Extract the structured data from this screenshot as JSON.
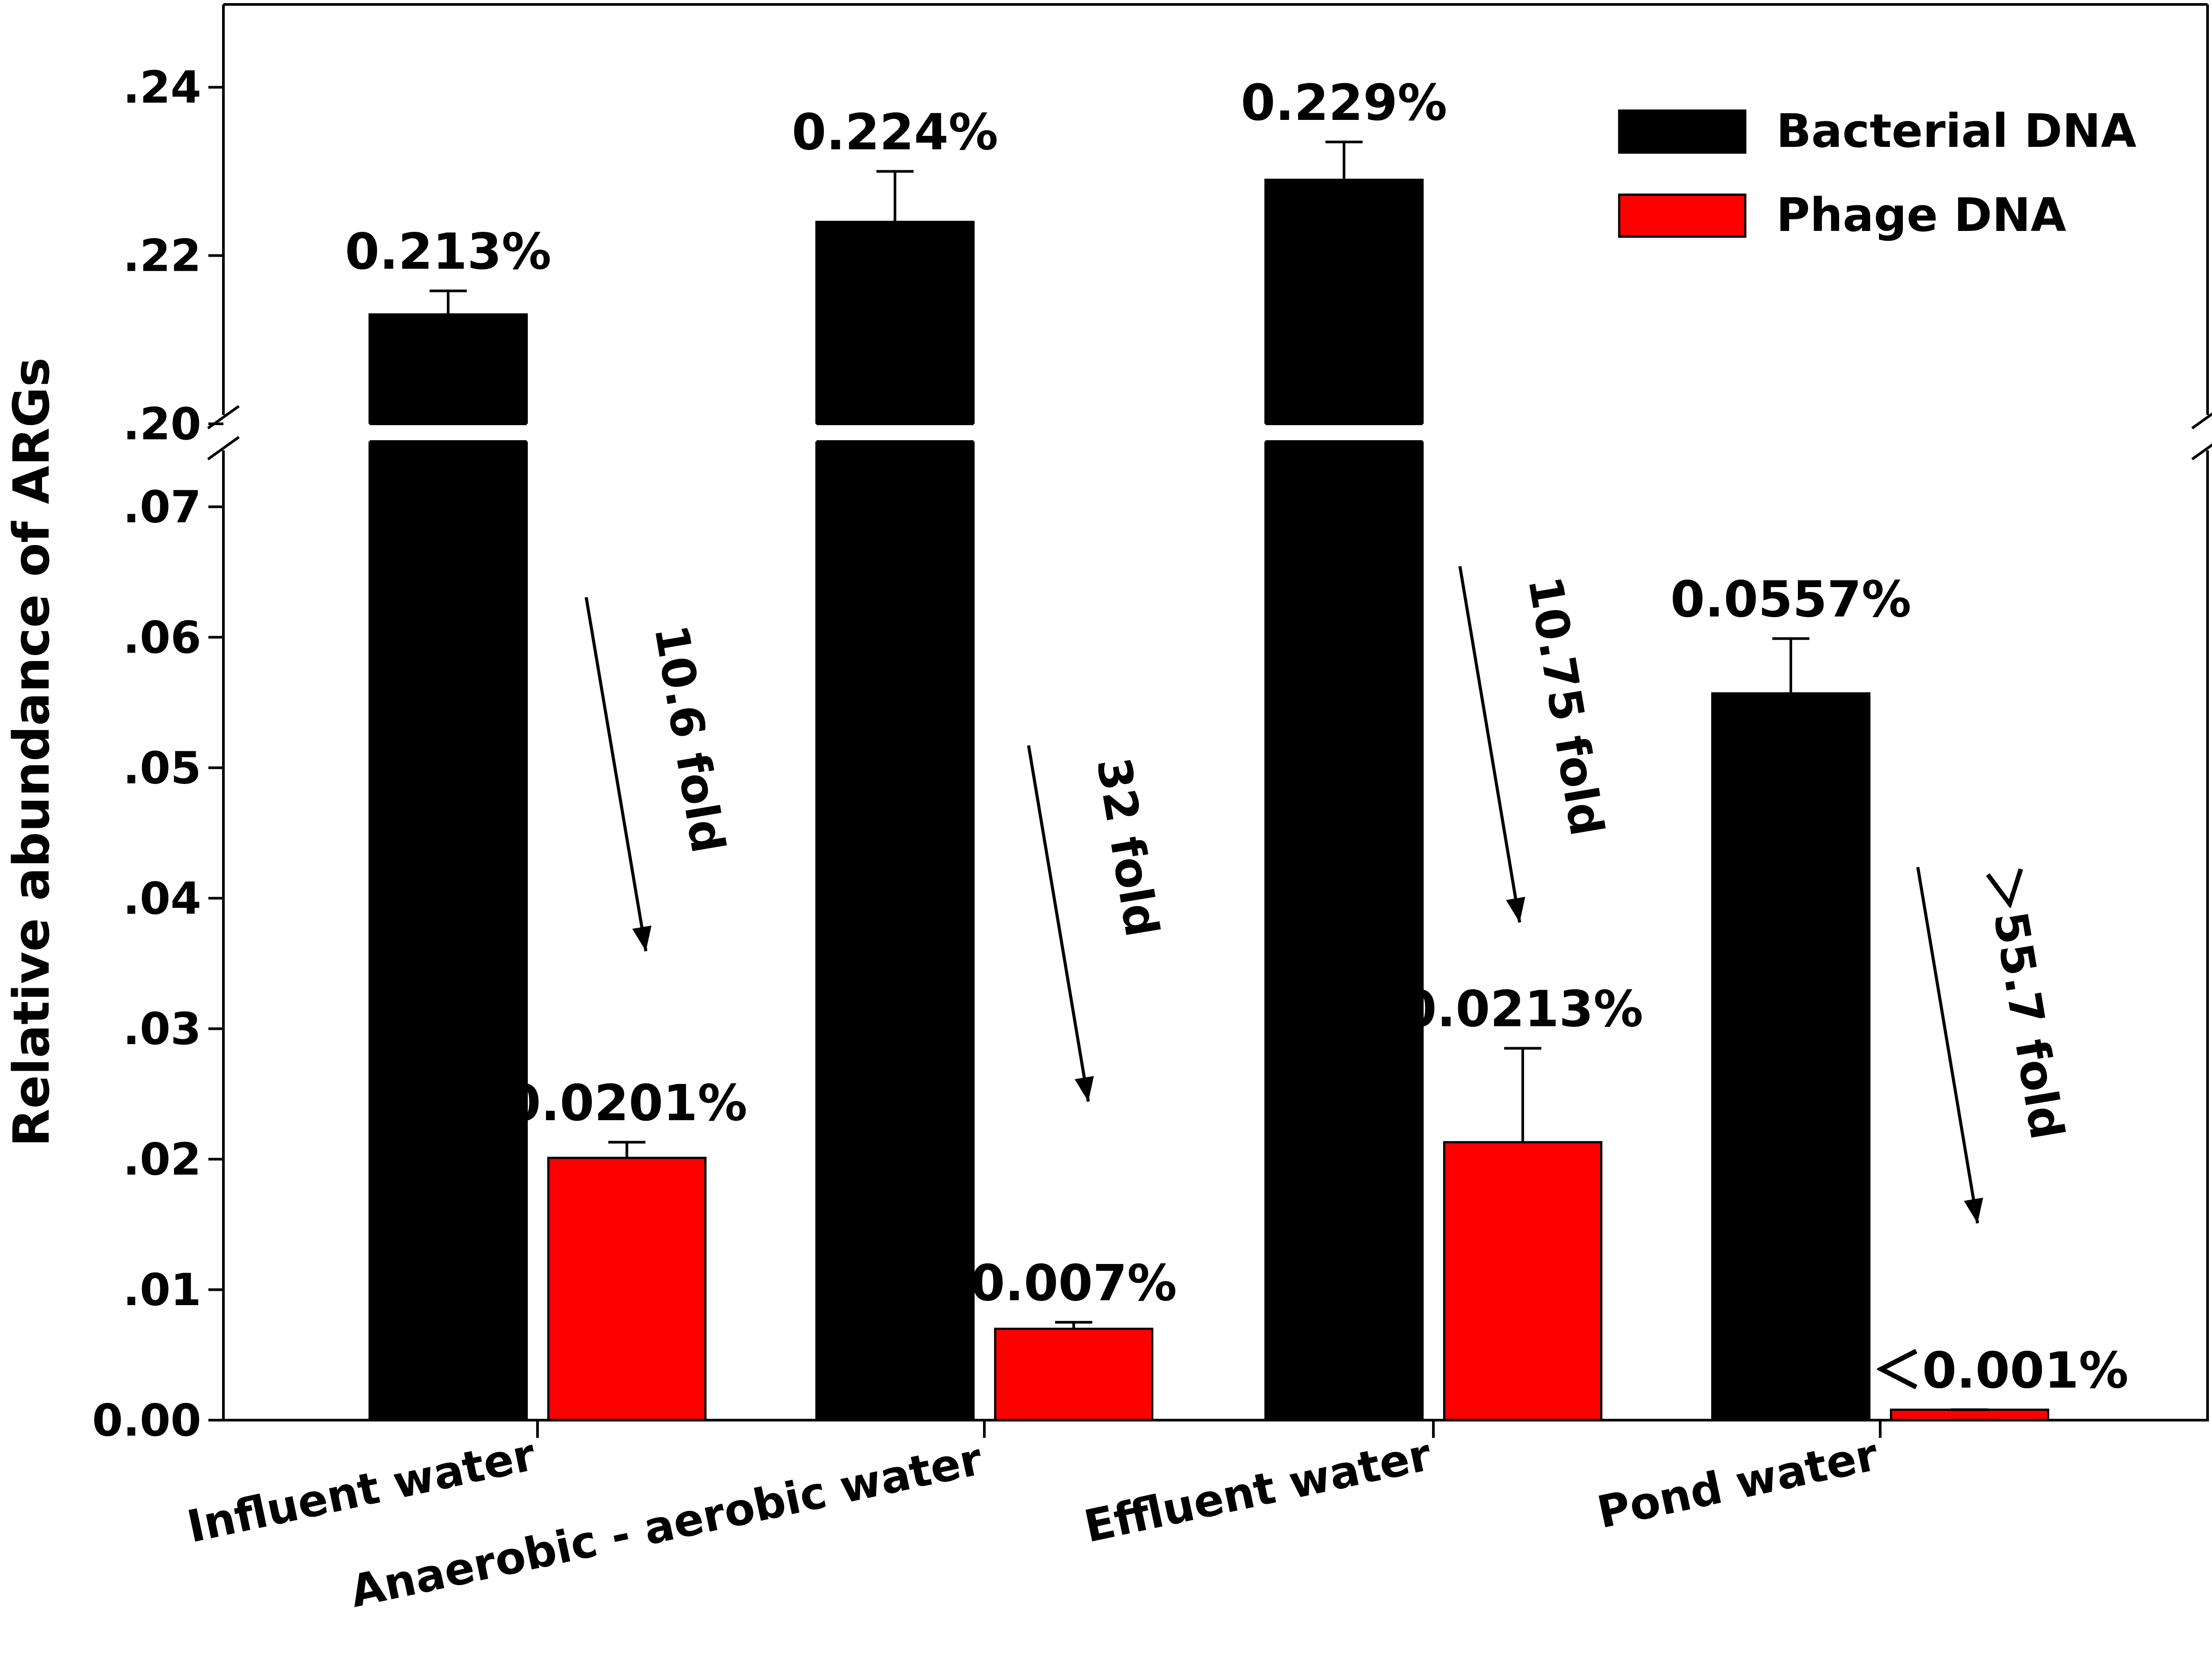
{
  "chart_data": {
    "type": "bar",
    "ylabel": "Relative abundance of ARGs",
    "xlabel": "",
    "categories": [
      "Influent water",
      "Anaerobic - aerobic water",
      "Effluent water",
      "Pond water"
    ],
    "axis_break": {
      "lower_range": [
        0,
        0.075
      ],
      "upper_range": [
        0.2,
        0.25
      ]
    },
    "y_ticks_lower": [
      ".07",
      ".06",
      ".05",
      ".04",
      ".03",
      ".02",
      ".01",
      "0.00"
    ],
    "y_ticks_upper": [
      ".24",
      ".22",
      ".20"
    ],
    "legend_position": "top-right",
    "grid": false,
    "series": [
      {
        "name": "Bacterial DNA",
        "color": "#000000",
        "values": [
          0.213,
          0.224,
          0.229,
          0.0557
        ],
        "errors": [
          0.0028,
          0.006,
          0.0045,
          0.0042
        ],
        "labels": [
          "0.213%",
          "0.224%",
          "0.229%",
          "0.0557%"
        ]
      },
      {
        "name": "Phage DNA",
        "color": "#ff0000",
        "values": [
          0.0201,
          0.007,
          0.0213,
          0.0008
        ],
        "errors": [
          0.0012,
          0.0005,
          0.0072,
          0
        ],
        "labels": [
          "0.0201%",
          "0.007%",
          "0.0213%",
          "＜0.001%"
        ]
      }
    ],
    "annotations": [
      "10.6 fold",
      "32 fold",
      "10.75 fold",
      "＞55.7 fold"
    ]
  }
}
